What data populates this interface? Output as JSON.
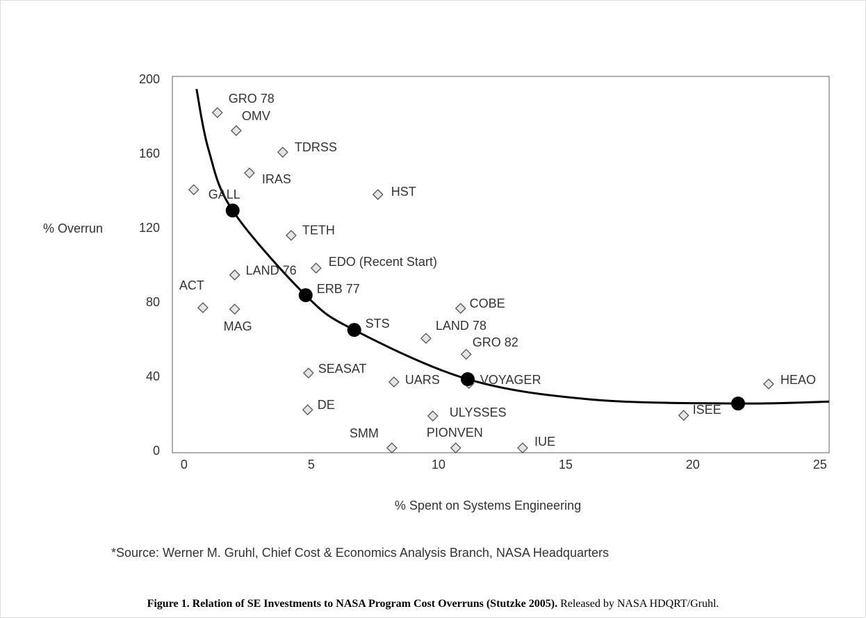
{
  "chart_data": {
    "type": "scatter",
    "x_label": "% Spent on Systems Engineering",
    "y_label": "% Overrun",
    "xlim": [
      -0.46,
      25.36
    ],
    "ylim": [
      -0.7,
      201.9
    ],
    "xticks": [
      0,
      5,
      10,
      15,
      20,
      25
    ],
    "yticks": [
      0,
      40,
      80,
      120,
      160,
      200
    ],
    "points": {
      "labels": [
        "GRO 78",
        "OMV",
        "TDRSS",
        "IRAS",
        "GALL",
        "HST",
        "TETH",
        "EDO (Recent Start)",
        "LAND 76",
        "ACT",
        "MAG",
        "COBE",
        "LAND 78",
        "GRO 82",
        "SEASAT",
        "UARS",
        "VOYAGER",
        "HEAO",
        "DE",
        "ULYSSES",
        "ISEE",
        "SMM",
        "PIONVEN",
        "IUE"
      ],
      "x": [
        1.31,
        2.05,
        3.88,
        2.57,
        0.38,
        7.62,
        4.21,
        5.19,
        1.99,
        0.74,
        1.99,
        10.87,
        9.51,
        11.09,
        4.89,
        8.25,
        11.2,
        22.98,
        4.86,
        9.78,
        19.64,
        8.17,
        10.68,
        13.31
      ],
      "y": [
        182.4,
        172.7,
        161.1,
        149.9,
        140.9,
        138.3,
        116.3,
        98.7,
        95,
        77.4,
        76.6,
        77,
        60.9,
        52.3,
        42.2,
        37.4,
        36.6,
        36.3,
        22.4,
        19.1,
        19.4,
        1.9,
        1.9,
        1.9
      ]
    },
    "dots": {
      "labels": [
        null,
        "ERB 77",
        "STS",
        null,
        null
      ],
      "x": [
        1.91,
        4.78,
        6.69,
        11.15,
        21.78
      ],
      "y": [
        129.7,
        84.1,
        65.4,
        38.9,
        25.8
      ]
    },
    "curve": {
      "x": [
        0.49,
        0.96,
        1.91,
        4.78,
        6.69,
        11.15,
        15.98,
        21.78,
        25.36
      ],
      "y": [
        195.1,
        162.6,
        129.7,
        84.1,
        65.4,
        38.9,
        28,
        25.8,
        26.8
      ]
    }
  },
  "source": "*Source: Werner M. Gruhl, Chief Cost & Economics Analysis Branch, NASA Headquarters",
  "caption": {
    "bold": "Figure 1. Relation of SE Investments to NASA Program Cost Overruns (Stutzke 2005).",
    "text": " Released by NASA HDQRT/Gruhl."
  }
}
